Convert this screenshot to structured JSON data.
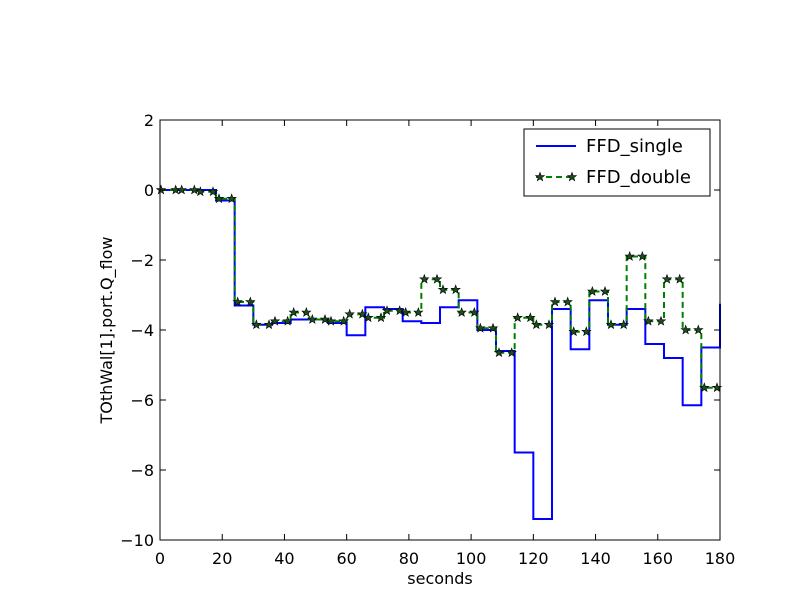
{
  "chart_data": {
    "type": "line",
    "title": "",
    "xlabel": "seconds",
    "ylabel": "TOthWal[1].port.Q_flow",
    "xlim": [
      0,
      180
    ],
    "ylim": [
      -10,
      2
    ],
    "xticks": [
      0,
      20,
      40,
      60,
      80,
      100,
      120,
      140,
      160,
      180
    ],
    "yticks": [
      -10,
      -8,
      -6,
      -4,
      -2,
      0,
      2
    ],
    "xtick_labels": [
      "0",
      "20",
      "40",
      "60",
      "80",
      "100",
      "120",
      "140",
      "160",
      "180"
    ],
    "ytick_labels": [
      "−10",
      "−8",
      "−6",
      "−4",
      "−2",
      "0",
      "2"
    ],
    "grid": false,
    "legend_position": "top-right",
    "series": [
      {
        "name": "FFD_single",
        "color": "#0000ff",
        "style": "solid-step",
        "x": [
          0,
          6,
          12,
          18,
          24,
          30,
          36,
          42,
          48,
          54,
          60,
          66,
          72,
          78,
          84,
          90,
          96,
          102,
          108,
          114,
          120,
          126,
          132,
          138,
          144,
          150,
          156,
          162,
          168,
          174,
          180
        ],
        "y": [
          0,
          0,
          0,
          -0.3,
          -3.3,
          -3.85,
          -3.8,
          -3.7,
          -3.7,
          -3.8,
          -4.15,
          -3.35,
          -3.4,
          -3.75,
          -3.8,
          -3.35,
          -3.15,
          -4.0,
          -4.6,
          -7.5,
          -9.4,
          -3.4,
          -4.55,
          -3.15,
          -3.85,
          -3.4,
          -4.4,
          -4.8,
          -6.15,
          -4.5,
          -3.25
        ]
      },
      {
        "name": "FFD_double",
        "color": "#007f00",
        "style": "dashed-step-star",
        "x": [
          0,
          6,
          12,
          18,
          24,
          30,
          36,
          42,
          48,
          54,
          60,
          66,
          72,
          78,
          84,
          90,
          96,
          102,
          108,
          114,
          120,
          126,
          132,
          138,
          144,
          150,
          156,
          162,
          168,
          174,
          180
        ],
        "y": [
          0,
          0,
          -0.05,
          -0.25,
          -3.2,
          -3.85,
          -3.75,
          -3.5,
          -3.7,
          -3.75,
          -3.55,
          -3.65,
          -3.45,
          -3.5,
          -2.55,
          -2.85,
          -3.5,
          -3.95,
          -4.65,
          -3.65,
          -3.85,
          -3.2,
          -4.05,
          -2.9,
          -3.85,
          -1.9,
          -3.75,
          -2.55,
          -4.0,
          -5.65,
          -5.65
        ]
      }
    ]
  }
}
